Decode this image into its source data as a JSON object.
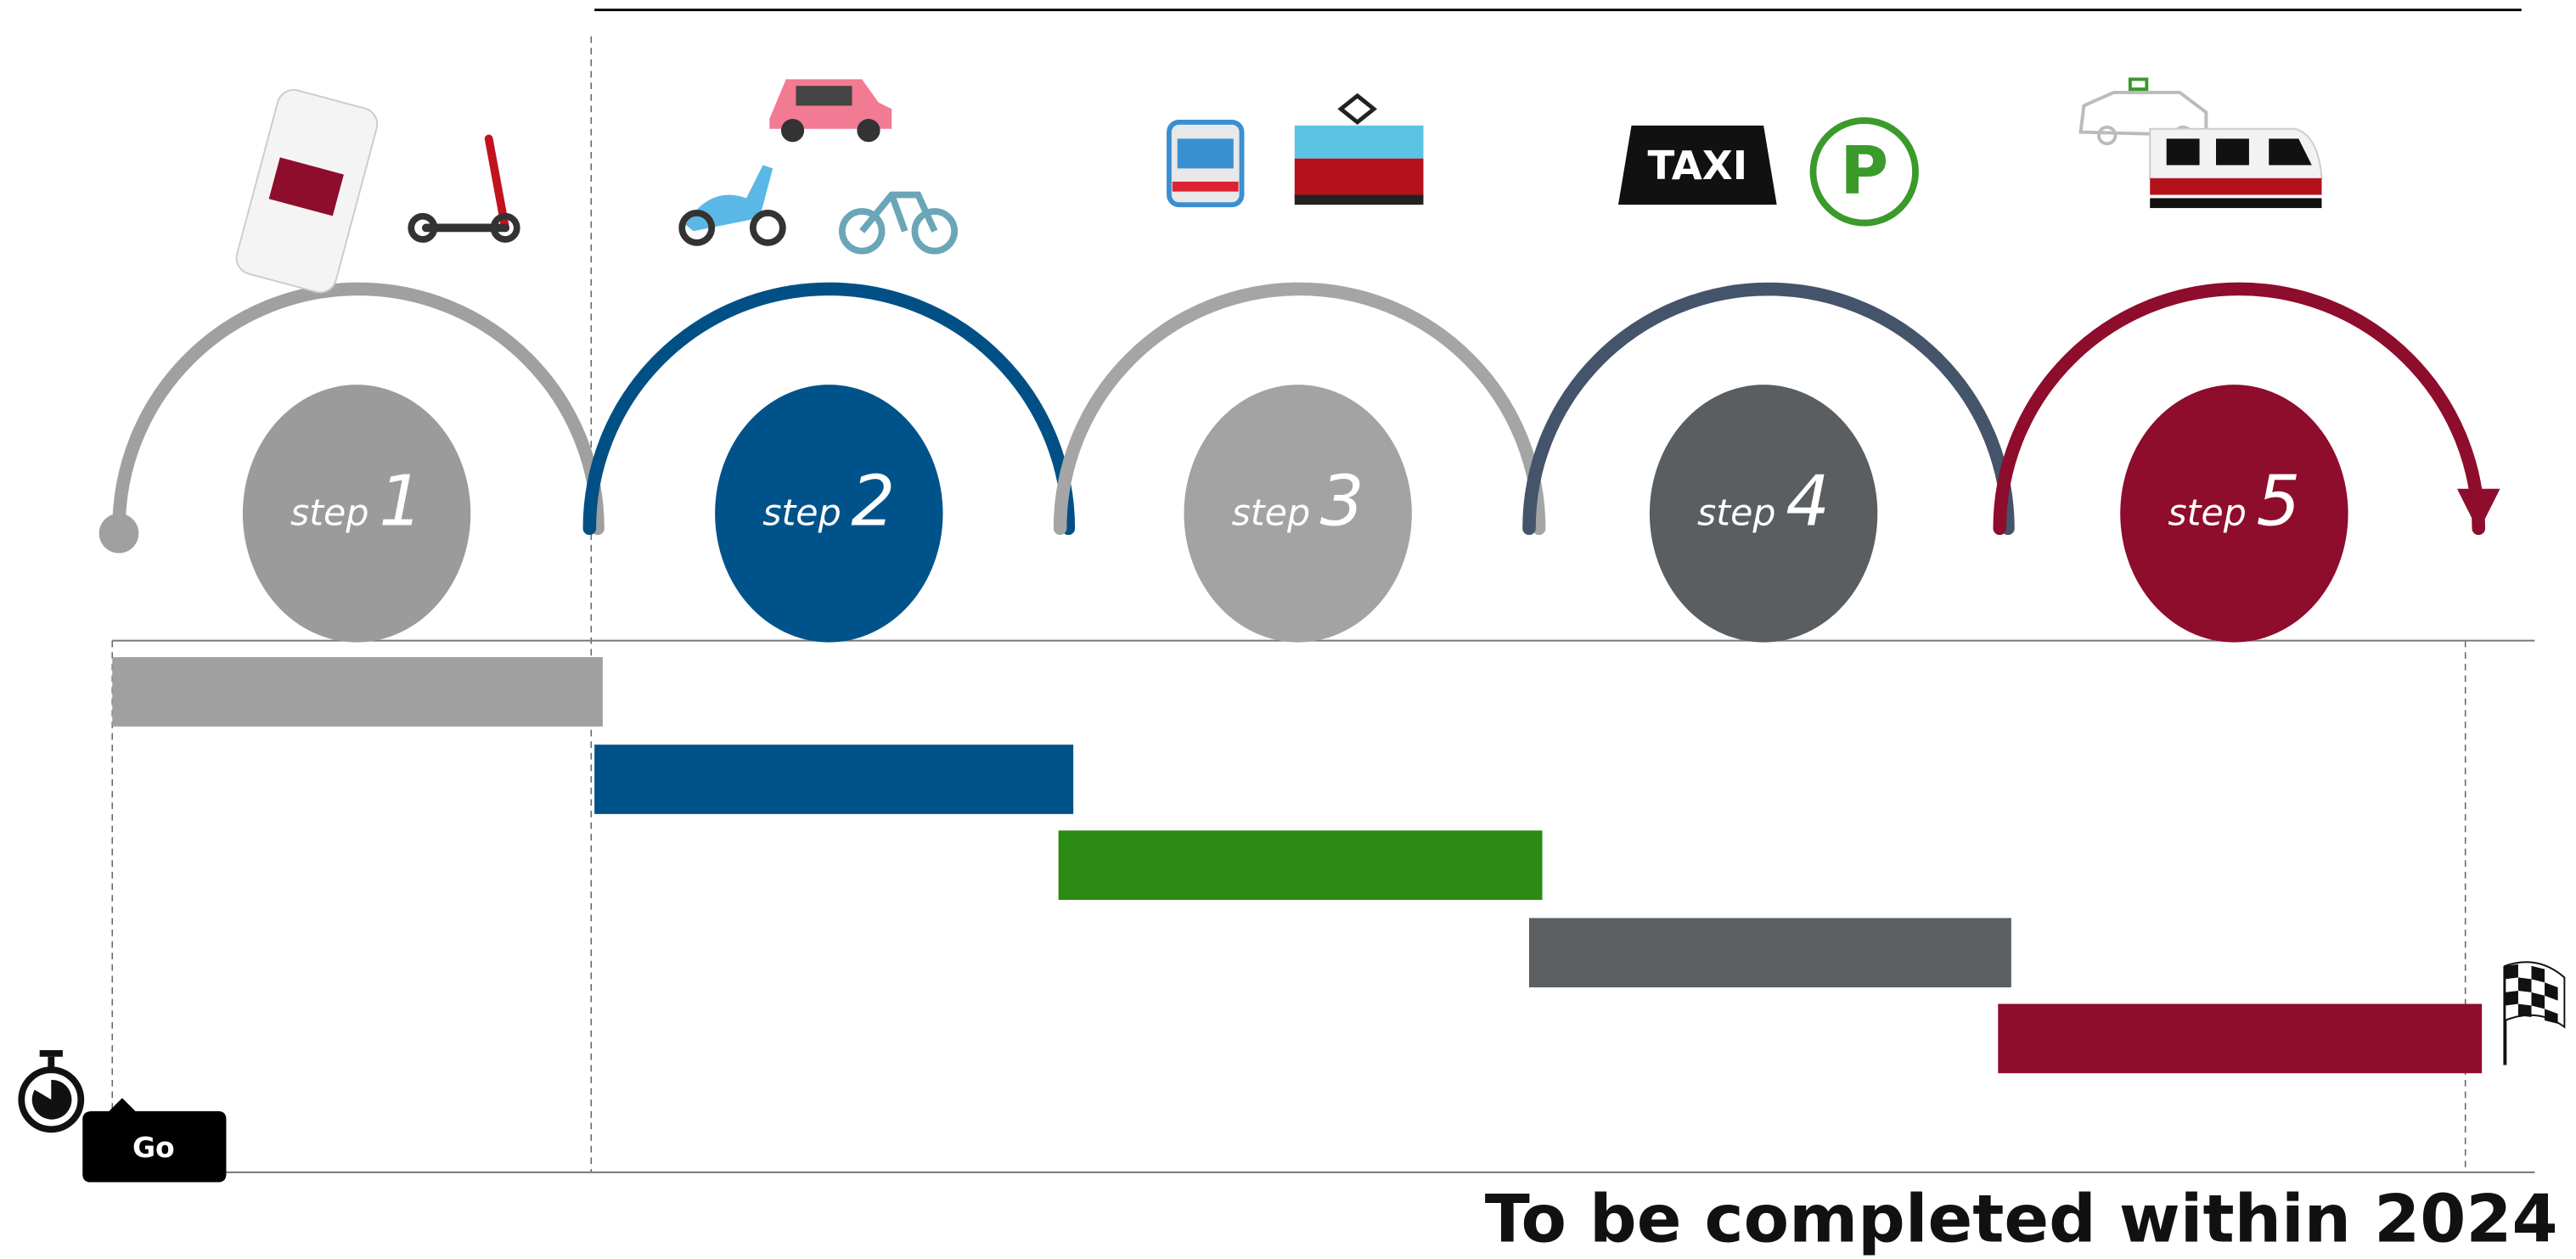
{
  "steps": [
    {
      "label": "step",
      "number": 1,
      "arc_color": "#a0a0a0",
      "circle_color": "#9b9b9b",
      "bar_color": "#a0a0a0"
    },
    {
      "label": "step",
      "number": 2,
      "arc_color": "#005086",
      "circle_color": "#00538a",
      "bar_color": "#00538a"
    },
    {
      "label": "step",
      "number": 3,
      "arc_color": "#a5a5a5",
      "circle_color": "#a3a3a3",
      "bar_color": "#2a8a12"
    },
    {
      "label": "step",
      "number": 4,
      "arc_color": "#44546a",
      "circle_color": "#5a5e61",
      "bar_color": "#5b5f62"
    },
    {
      "label": "step",
      "number": 5,
      "arc_color": "#8e0c2c",
      "circle_color": "#8e0c2c",
      "bar_color": "#8e0c2c"
    }
  ],
  "icons": {
    "taxi_sign": "TAXI",
    "parking": "P"
  },
  "start": {
    "label": "Go"
  },
  "footer": {
    "text": "To be completed within 2024"
  }
}
